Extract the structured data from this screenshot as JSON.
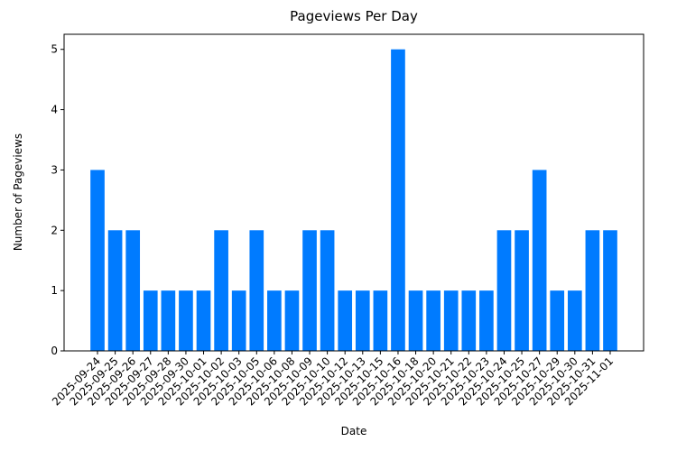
{
  "chart_data": {
    "type": "bar",
    "title": "Pageviews Per Day",
    "x_label": "Date",
    "y_label": "Number of Pageviews",
    "categories": [
      "2025-09-24",
      "2025-09-25",
      "2025-09-26",
      "2025-09-27",
      "2025-09-28",
      "2025-09-30",
      "2025-10-01",
      "2025-10-02",
      "2025-10-03",
      "2025-10-05",
      "2025-10-06",
      "2025-10-08",
      "2025-10-09",
      "2025-10-10",
      "2025-10-12",
      "2025-10-13",
      "2025-10-15",
      "2025-10-16",
      "2025-10-18",
      "2025-10-20",
      "2025-10-21",
      "2025-10-22",
      "2025-10-23",
      "2025-10-24",
      "2025-10-25",
      "2025-10-27",
      "2025-10-29",
      "2025-10-30",
      "2025-10-31",
      "2025-11-01"
    ],
    "values": [
      3,
      2,
      2,
      1,
      1,
      1,
      1,
      2,
      1,
      2,
      1,
      1,
      2,
      2,
      1,
      1,
      1,
      5,
      1,
      1,
      1,
      1,
      1,
      2,
      2,
      3,
      1,
      1,
      2,
      2
    ],
    "color": "#007bff",
    "ylim": [
      0,
      5.25
    ],
    "yticks": [
      0,
      1,
      2,
      3,
      4,
      5
    ],
    "grid": false
  }
}
